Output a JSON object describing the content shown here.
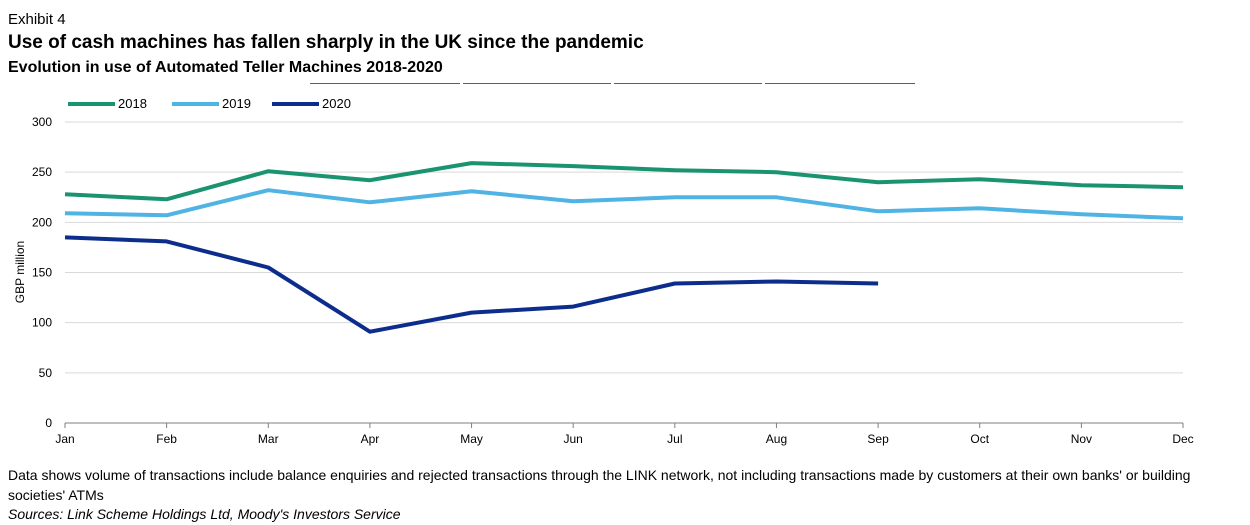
{
  "header": {
    "exhibit": "Exhibit 4",
    "title": "Use of cash machines has fallen sharply in the UK since the pandemic",
    "subtitle": "Evolution in use of Automated Teller Machines 2018-2020"
  },
  "footer": {
    "note": "Data shows volume of transactions include balance enquiries and rejected transactions through the LINK network, not including transactions made by customers at their own banks' or building societies' ATMs",
    "source": "Sources: Link Scheme Holdings Ltd, Moody's Investors Service"
  },
  "chart_data": {
    "type": "line",
    "title": "Evolution in use of Automated Teller Machines 2018-2020",
    "xlabel": "",
    "ylabel": "GBP million",
    "categories": [
      "Jan",
      "Feb",
      "Mar",
      "Apr",
      "May",
      "Jun",
      "Jul",
      "Aug",
      "Sep",
      "Oct",
      "Nov",
      "Dec"
    ],
    "ylim": [
      0,
      300
    ],
    "yticks": [
      0,
      50,
      100,
      150,
      200,
      250,
      300
    ],
    "grid": true,
    "legend": "top-left",
    "series": [
      {
        "name": "2018",
        "color": "#1a9470",
        "values": [
          228,
          223,
          251,
          242,
          259,
          256,
          252,
          250,
          240,
          243,
          237,
          235
        ]
      },
      {
        "name": "2019",
        "color": "#4fb3e3",
        "values": [
          209,
          207,
          232,
          220,
          231,
          221,
          225,
          225,
          211,
          214,
          208,
          204
        ]
      },
      {
        "name": "2020",
        "color": "#0c2d8c",
        "values": [
          185,
          181,
          155,
          91,
          110,
          116,
          139,
          141,
          139,
          null,
          null,
          null
        ]
      }
    ]
  }
}
